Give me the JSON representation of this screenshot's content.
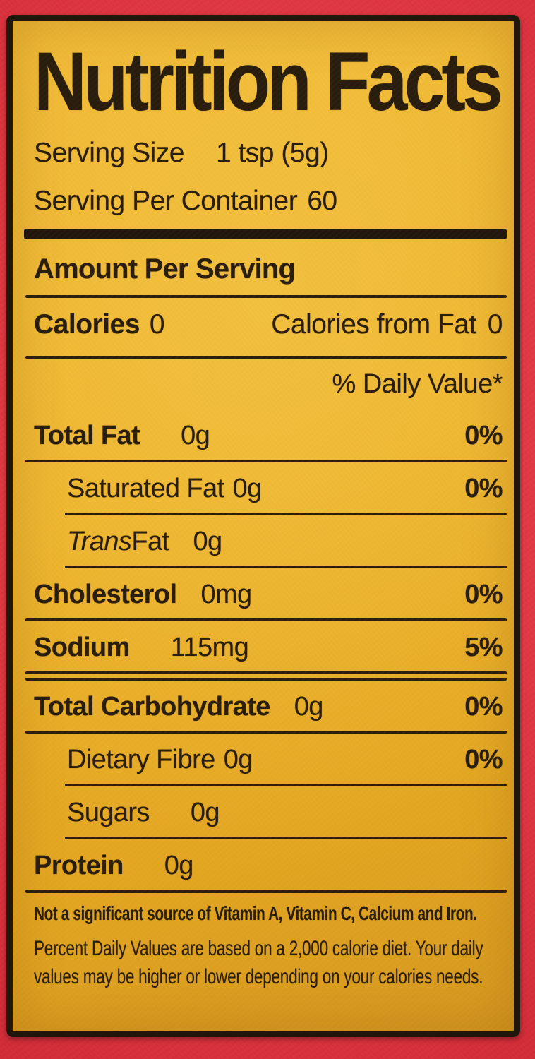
{
  "colors": {
    "background_red": "#de3640",
    "label_yellow": "#ecb22a",
    "ink_black": "#271c0d"
  },
  "header": {
    "title": "Nutrition Facts",
    "serving_size_label": "Serving Size",
    "serving_size_value": "1 tsp (5g)",
    "servings_per_container_label": "Serving Per Container",
    "servings_per_container_value": "60"
  },
  "summary": {
    "amount_per_serving": "Amount Per Serving",
    "calories_label": "Calories",
    "calories_value": "0",
    "calories_from_fat_label": "Calories from Fat",
    "calories_from_fat_value": "0",
    "daily_value_header": "% Daily Value*"
  },
  "nutrients": [
    {
      "label": "Total Fat",
      "value": "0g",
      "percent": "0%"
    },
    {
      "label": "Saturated Fat",
      "value": "0g",
      "percent": "0%"
    },
    {
      "label_italic": "Trans",
      "label": " Fat",
      "value": "0g",
      "percent": ""
    },
    {
      "label": "Cholesterol",
      "value": "0mg",
      "percent": "0%"
    },
    {
      "label": "Sodium",
      "value": "115mg",
      "percent": "5%"
    },
    {
      "label": "Total Carbohydrate",
      "value": "0g",
      "percent": "0%"
    },
    {
      "label": "Dietary Fibre",
      "value": "0g",
      "percent": "0%"
    },
    {
      "label": "Sugars",
      "value": "0g",
      "percent": ""
    },
    {
      "label": "Protein",
      "value": "0g",
      "percent": ""
    }
  ],
  "footnotes": {
    "significant_source": "Not a significant source of Vitamin A, Vitamin C, Calcium and Iron.",
    "daily_values": "Percent Daily Values are based on a 2,000 calorie diet. Your daily values may be higher or lower depending on your calories needs."
  }
}
